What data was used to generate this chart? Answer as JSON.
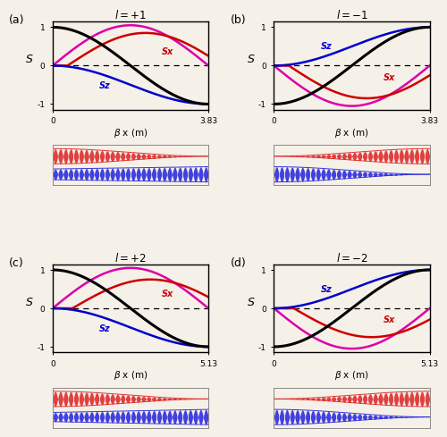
{
  "panels": [
    {
      "label": "a",
      "title": "l=+1",
      "xmax": 3.83,
      "l": 1
    },
    {
      "label": "b",
      "title": "l=-1",
      "xmax": 3.83,
      "l": -1
    },
    {
      "label": "c",
      "title": "l=+2",
      "xmax": 5.13,
      "l": 2
    },
    {
      "label": "d",
      "title": "l=-2",
      "xmax": 5.13,
      "l": -2
    }
  ],
  "color_black": "#000000",
  "color_red": "#CC0000",
  "color_magenta": "#DD00AA",
  "color_blue": "#0000CC",
  "bg_color": "#f5f0e8",
  "osc_red": "#DD2222",
  "osc_blue": "#2222DD"
}
